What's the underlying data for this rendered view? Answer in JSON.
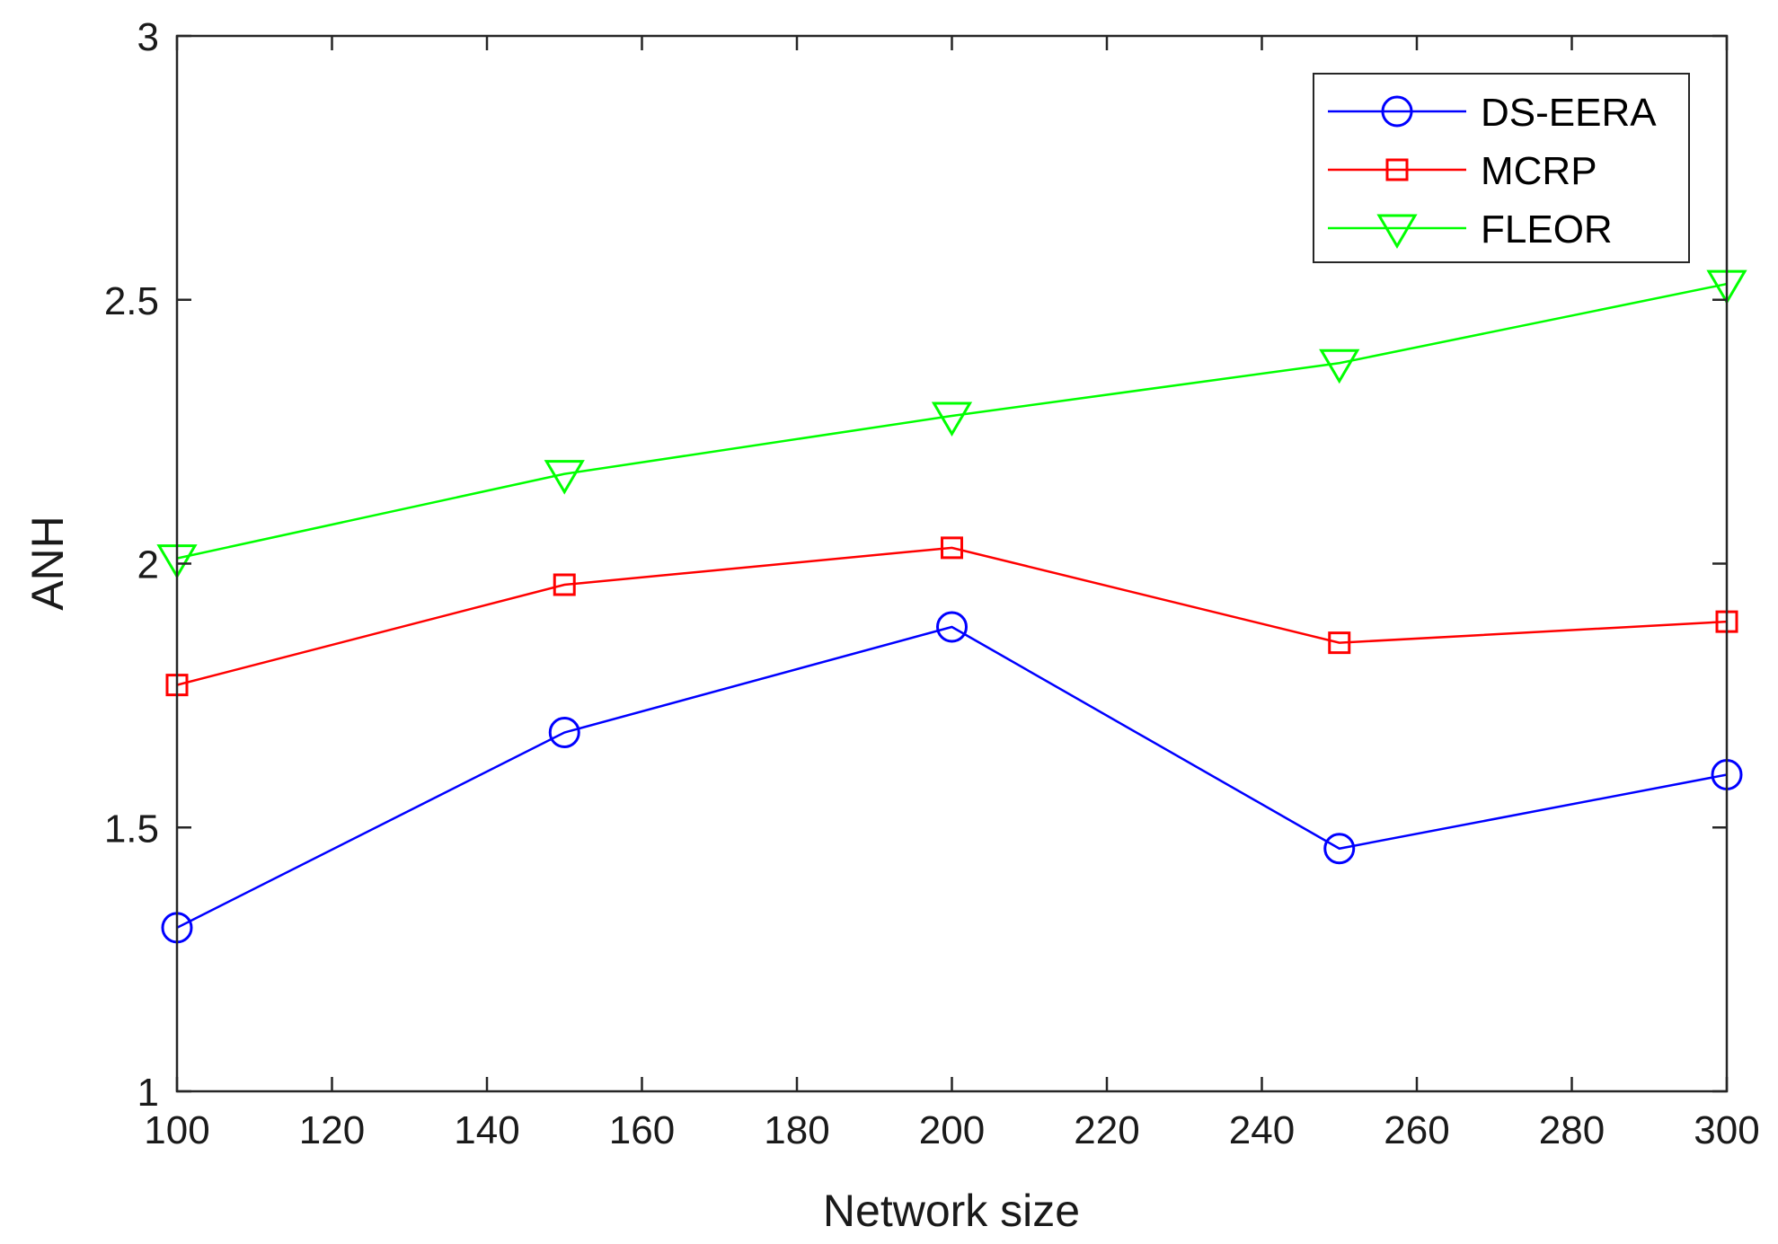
{
  "chart_data": {
    "type": "line",
    "title": "",
    "xlabel": "Network size",
    "ylabel": "ANH",
    "x": [
      100,
      150,
      200,
      250,
      300
    ],
    "xlim": [
      100,
      300
    ],
    "ylim": [
      1,
      3
    ],
    "xticks": [
      "100",
      "120",
      "140",
      "160",
      "180",
      "200",
      "220",
      "240",
      "260",
      "280",
      "300"
    ],
    "yticks": [
      "1",
      "1.5",
      "2",
      "2.5",
      "3"
    ],
    "grid": false,
    "legend_position": "top-right",
    "series": [
      {
        "name": "DS-EERA",
        "color": "#0000ff",
        "marker": "circle",
        "values": [
          1.31,
          1.68,
          1.88,
          1.46,
          1.6
        ]
      },
      {
        "name": "MCRP",
        "color": "#ff0000",
        "marker": "square",
        "values": [
          1.77,
          1.96,
          2.03,
          1.85,
          1.89
        ]
      },
      {
        "name": "FLEOR",
        "color": "#00ff00",
        "marker": "triangle-down",
        "values": [
          2.01,
          2.17,
          2.28,
          2.38,
          2.53
        ]
      }
    ]
  }
}
